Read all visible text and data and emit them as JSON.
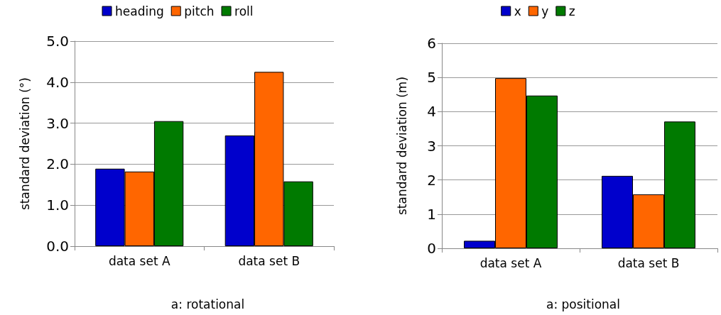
{
  "chart_data": [
    {
      "type": "bar",
      "title": "a: rotational",
      "ylabel": "standard deviation (°)",
      "categories": [
        "data set A",
        "data set B"
      ],
      "series": [
        {
          "name": "heading",
          "color": "#0000cc",
          "values": [
            1.89,
            2.7
          ]
        },
        {
          "name": "pitch",
          "color": "#ff6600",
          "values": [
            1.82,
            4.25
          ]
        },
        {
          "name": "roll",
          "color": "#007a00",
          "values": [
            3.05,
            1.58
          ]
        }
      ],
      "ylim": [
        0,
        5
      ],
      "yticks": [
        {
          "value": 0,
          "label": "0.0"
        },
        {
          "value": 1,
          "label": "1.0"
        },
        {
          "value": 2,
          "label": "2.0"
        },
        {
          "value": 3,
          "label": "3.0"
        },
        {
          "value": 4,
          "label": "4.0"
        },
        {
          "value": 5,
          "label": "5.0"
        }
      ],
      "grid": "y",
      "legend": "top"
    },
    {
      "type": "bar",
      "title": "a: positional",
      "ylabel": "standard deviation (m)",
      "categories": [
        "data set A",
        "data set B"
      ],
      "series": [
        {
          "name": "x",
          "color": "#0000cc",
          "values": [
            0.22,
            2.12
          ]
        },
        {
          "name": "y",
          "color": "#ff6600",
          "values": [
            4.98,
            1.58
          ]
        },
        {
          "name": "z",
          "color": "#007a00",
          "values": [
            4.47,
            3.71
          ]
        }
      ],
      "ylim": [
        0,
        6
      ],
      "yticks": [
        0,
        1,
        2,
        3,
        4,
        5,
        6
      ],
      "grid": "y",
      "legend": "top"
    }
  ]
}
